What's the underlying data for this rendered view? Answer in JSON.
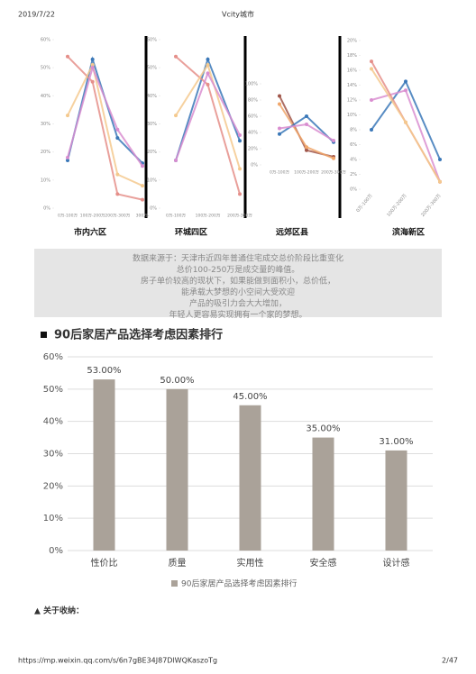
{
  "header": {
    "date": "2019/7/22",
    "site": "Vcity城市"
  },
  "chart_data": [
    {
      "type": "line",
      "title": "市内六区",
      "categories": [
        "0万-100万",
        "100万-200万",
        "200万-300万",
        "300万-"
      ],
      "series": [
        {
          "color": "#3b78b8",
          "values": [
            17,
            53,
            25,
            16
          ]
        },
        {
          "color": "#e58f8a",
          "values": [
            54,
            45,
            5,
            3
          ]
        },
        {
          "color": "#f4c98e",
          "values": [
            33,
            51,
            12,
            8
          ]
        },
        {
          "color": "#d98ed0",
          "values": [
            18,
            50,
            28,
            15
          ]
        }
      ],
      "ylim": [
        0,
        60
      ],
      "yticks": [
        {
          "value": 0,
          "label": "0%"
        },
        {
          "value": 10,
          "label": "10%"
        },
        {
          "value": 20,
          "label": "20%"
        },
        {
          "value": 30,
          "label": "30%"
        },
        {
          "value": 40,
          "label": "40%"
        },
        {
          "value": 50,
          "label": "50%"
        },
        {
          "value": 60,
          "label": "60%"
        }
      ]
    },
    {
      "type": "line",
      "title": "环城四区",
      "categories": [
        "0万-100万",
        "100万-200万",
        "200万-300万"
      ],
      "series": [
        {
          "color": "#3b78b8",
          "values": [
            17,
            53,
            24
          ]
        },
        {
          "color": "#e58f8a",
          "values": [
            54,
            44,
            5
          ]
        },
        {
          "color": "#f4c98e",
          "values": [
            33,
            51,
            14
          ]
        },
        {
          "color": "#d98ed0",
          "values": [
            17,
            48,
            26
          ]
        }
      ],
      "ylim": [
        0,
        60
      ],
      "yticks": [
        {
          "value": 0,
          "label": "0%"
        },
        {
          "value": 10,
          "label": "10%"
        },
        {
          "value": 20,
          "label": "20%"
        },
        {
          "value": 30,
          "label": "30%"
        },
        {
          "value": 40,
          "label": "40%"
        },
        {
          "value": 50,
          "label": "50%"
        },
        {
          "value": 60,
          "label": "60%"
        }
      ]
    },
    {
      "type": "line",
      "title": "远郊区县",
      "categories": [
        "0万-100万",
        "100万-200万",
        "200万-300万"
      ],
      "series": [
        {
          "color": "#a0564a",
          "values": [
            85,
            18,
            10
          ]
        },
        {
          "color": "#f0a66a",
          "values": [
            75,
            22,
            8
          ]
        },
        {
          "color": "#3b78b8",
          "values": [
            38,
            60,
            28
          ]
        },
        {
          "color": "#d98ed0",
          "values": [
            45,
            50,
            30
          ]
        }
      ],
      "ylim": [
        0,
        100
      ],
      "yticks": [
        {
          "value": 0,
          "label": "0%"
        },
        {
          "value": 20,
          "label": "20%"
        },
        {
          "value": 40,
          "label": "40%"
        },
        {
          "value": 60,
          "label": "60%"
        },
        {
          "value": 80,
          "label": "80%"
        },
        {
          "value": 100,
          "label": "100%"
        }
      ]
    },
    {
      "type": "line",
      "title": "滨海新区",
      "categories": [
        "0万-100万",
        "100万-200万",
        "200万-300万"
      ],
      "series": [
        {
          "color": "#3b78b8",
          "values": [
            8,
            14.5,
            4
          ]
        },
        {
          "color": "#d98ed0",
          "values": [
            12,
            13.3,
            1
          ]
        },
        {
          "color": "#e58f8a",
          "values": [
            17.2,
            9,
            1
          ]
        },
        {
          "color": "#f4c98e",
          "values": [
            16.2,
            9,
            1
          ]
        }
      ],
      "ylim": [
        0,
        20
      ],
      "yticks": [
        {
          "value": 0,
          "label": "0%"
        },
        {
          "value": 2,
          "label": "2%"
        },
        {
          "value": 4,
          "label": "4%"
        },
        {
          "value": 6,
          "label": "6%"
        },
        {
          "value": 8,
          "label": "8%"
        },
        {
          "value": 10,
          "label": "10%"
        },
        {
          "value": 12,
          "label": "12%"
        },
        {
          "value": 14,
          "label": "14%"
        },
        {
          "value": 16,
          "label": "16%"
        },
        {
          "value": 18,
          "label": "18%"
        },
        {
          "value": 20,
          "label": "20%"
        }
      ]
    },
    {
      "type": "bar",
      "categories": [
        "性价比",
        "质量",
        "实用性",
        "安全感",
        "设计感"
      ],
      "series": [
        {
          "name": "90后家居产品选择考虑因素排行",
          "color": "#aaa299",
          "values": [
            53,
            50,
            45,
            35,
            31
          ],
          "value_labels": [
            "53.00%",
            "50.00%",
            "45.00%",
            "35.00%",
            "31.00%"
          ]
        }
      ],
      "ylim": [
        0,
        60
      ],
      "yticks": [
        {
          "value": 0,
          "label": "0%"
        },
        {
          "value": 10,
          "label": "10%"
        },
        {
          "value": 20,
          "label": "20%"
        },
        {
          "value": 30,
          "label": "30%"
        },
        {
          "value": 40,
          "label": "40%"
        },
        {
          "value": 50,
          "label": "50%"
        },
        {
          "value": 60,
          "label": "60%"
        }
      ],
      "grid": true,
      "legend": "bottom"
    }
  ],
  "note": [
    "数据来源于：天津市近四年普通住宅成交总价阶段比重变化",
    "总价100-250万是成交量的峰值。",
    "房子单价较高的现状下，如果能做到面积小，总价低，",
    "能承载大梦想的小空间大受欢迎",
    "产品的吸引力会大大增加，",
    "年轻人更容易实现拥有一个家的梦想。"
  ],
  "section_heading": "90后家居产品选择考虑因素排行",
  "subheading": "▲ 关于收纳：",
  "footer": {
    "url": "https://mp.weixin.qq.com/s/6n7gBE34J87DlWQKaszoTg",
    "page": "2/47"
  }
}
